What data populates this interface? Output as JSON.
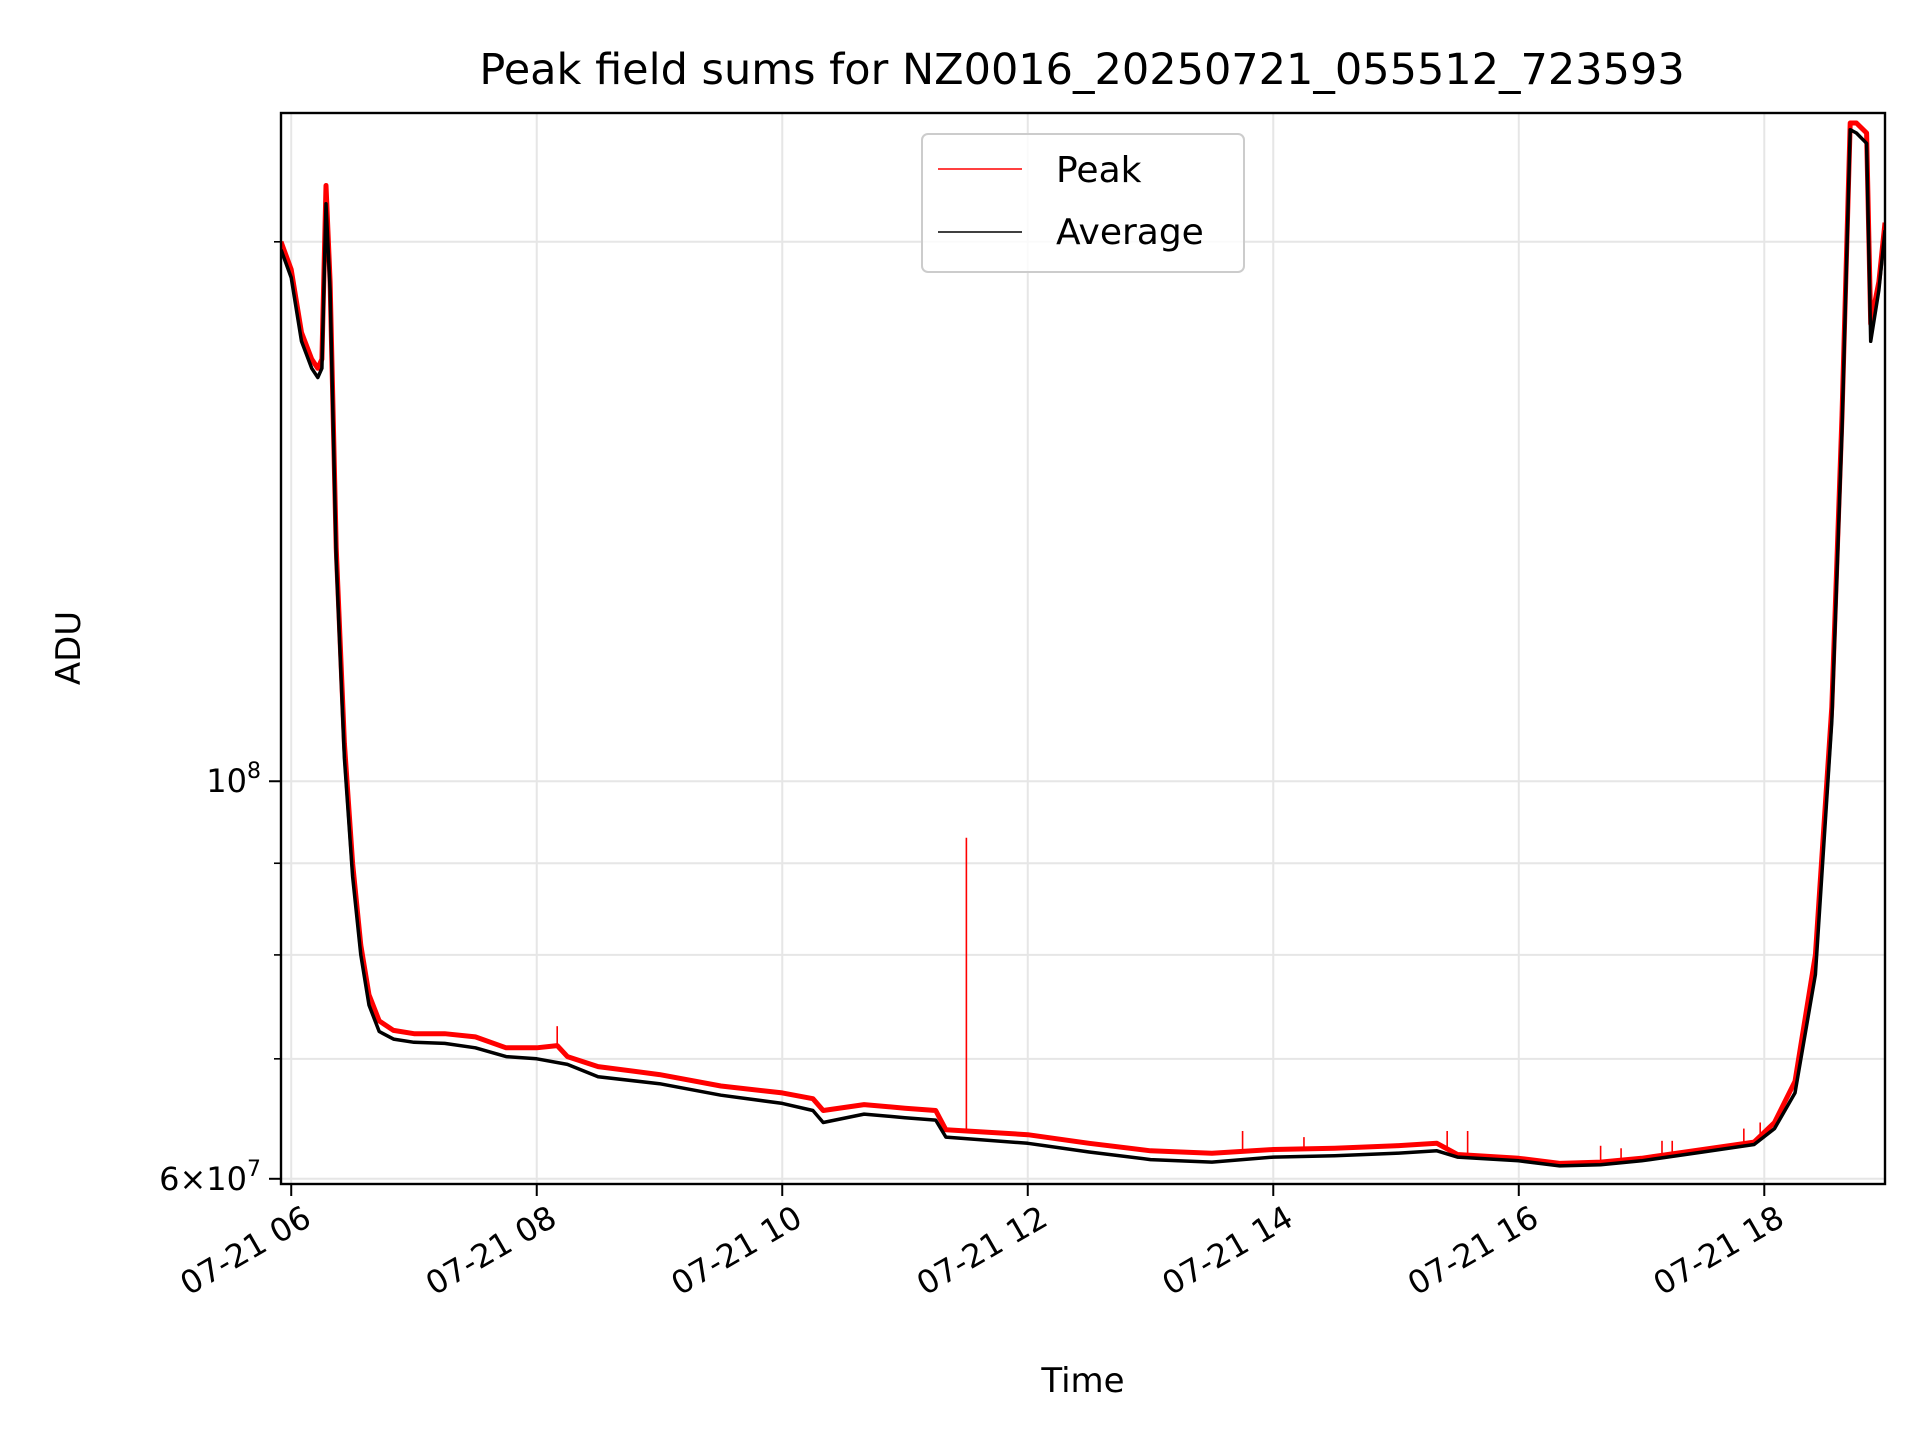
{
  "chart_data": {
    "type": "line",
    "title": "Peak field sums for NZ0016_20250721_055512_723593",
    "xlabel": "Time",
    "ylabel": "ADU",
    "yscale": "log",
    "ylim": [
      59600000,
      236000000
    ],
    "xlim": [
      "07-21 05:55",
      "07-21 18:59"
    ],
    "x_ticks": [
      "07-21 06",
      "07-21 08",
      "07-21 10",
      "07-21 12",
      "07-21 14",
      "07-21 16",
      "07-21 18"
    ],
    "y_ticks": [
      {
        "value": 100000000,
        "base": "10",
        "exp": "8"
      },
      {
        "value": 60000000,
        "mant": "6",
        "base": "10",
        "exp": "7"
      }
    ],
    "grid": true,
    "legend": "upper center",
    "colors": {
      "peak": "#ff0000",
      "average": "#000000"
    },
    "series": [
      {
        "name": "Peak",
        "color": "#ff0000",
        "points": [
          [
            "05:55",
            200000000
          ],
          [
            "06:00",
            193000000
          ],
          [
            "06:05",
            178000000
          ],
          [
            "06:10",
            172000000
          ],
          [
            "06:13",
            170000000
          ],
          [
            "06:15",
            172000000
          ],
          [
            "06:17",
            215000000
          ],
          [
            "06:19",
            190000000
          ],
          [
            "06:22",
            135000000
          ],
          [
            "06:26",
            105000000
          ],
          [
            "06:30",
            90000000
          ],
          [
            "06:34",
            81000000
          ],
          [
            "06:38",
            76000000
          ],
          [
            "06:43",
            73500000
          ],
          [
            "06:50",
            72600000
          ],
          [
            "07:00",
            72300000
          ],
          [
            "07:15",
            72300000
          ],
          [
            "07:30",
            72000000
          ],
          [
            "07:45",
            71000000
          ],
          [
            "08:00",
            71000000
          ],
          [
            "08:10",
            71200000
          ],
          [
            "08:15",
            70200000
          ],
          [
            "08:30",
            69300000
          ],
          [
            "09:00",
            68600000
          ],
          [
            "09:30",
            67600000
          ],
          [
            "10:00",
            67000000
          ],
          [
            "10:15",
            66500000
          ],
          [
            "10:20",
            65500000
          ],
          [
            "10:40",
            66000000
          ],
          [
            "11:00",
            65700000
          ],
          [
            "11:15",
            65500000
          ],
          [
            "11:20",
            63900000
          ],
          [
            "12:00",
            63500000
          ],
          [
            "12:30",
            62800000
          ],
          [
            "13:00",
            62200000
          ],
          [
            "13:30",
            62000000
          ],
          [
            "14:00",
            62300000
          ],
          [
            "14:30",
            62400000
          ],
          [
            "15:00",
            62600000
          ],
          [
            "15:20",
            62800000
          ],
          [
            "15:30",
            61900000
          ],
          [
            "16:00",
            61600000
          ],
          [
            "16:20",
            61200000
          ],
          [
            "16:40",
            61300000
          ],
          [
            "17:00",
            61600000
          ],
          [
            "17:30",
            62300000
          ],
          [
            "17:55",
            62900000
          ],
          [
            "18:05",
            64500000
          ],
          [
            "18:15",
            68000000
          ],
          [
            "18:25",
            80000000
          ],
          [
            "18:33",
            110000000
          ],
          [
            "18:38",
            160000000
          ],
          [
            "18:42",
            233000000
          ],
          [
            "18:45",
            233000000
          ],
          [
            "18:50",
            230000000
          ],
          [
            "18:52",
            180000000
          ],
          [
            "18:56",
            190000000
          ],
          [
            "18:59",
            205000000
          ]
        ],
        "spikes": [
          [
            "08:10",
            73000000
          ],
          [
            "11:30",
            93000000
          ],
          [
            "13:45",
            63800000
          ],
          [
            "14:15",
            63300000
          ],
          [
            "15:25",
            63800000
          ],
          [
            "15:35",
            63800000
          ],
          [
            "16:40",
            62600000
          ],
          [
            "16:50",
            62400000
          ],
          [
            "17:10",
            63000000
          ],
          [
            "17:15",
            63000000
          ],
          [
            "17:50",
            64000000
          ],
          [
            "17:58",
            64500000
          ]
        ]
      },
      {
        "name": "Average",
        "color": "#000000",
        "points": [
          [
            "05:55",
            198000000
          ],
          [
            "06:00",
            191000000
          ],
          [
            "06:05",
            176000000
          ],
          [
            "06:10",
            170000000
          ],
          [
            "06:13",
            168000000
          ],
          [
            "06:15",
            170000000
          ],
          [
            "06:17",
            210000000
          ],
          [
            "06:19",
            188000000
          ],
          [
            "06:22",
            133000000
          ],
          [
            "06:26",
            103000000
          ],
          [
            "06:30",
            88500000
          ],
          [
            "06:34",
            80000000
          ],
          [
            "06:38",
            75000000
          ],
          [
            "06:43",
            72500000
          ],
          [
            "06:50",
            71800000
          ],
          [
            "07:00",
            71500000
          ],
          [
            "07:15",
            71400000
          ],
          [
            "07:30",
            71000000
          ],
          [
            "07:45",
            70200000
          ],
          [
            "08:00",
            70000000
          ],
          [
            "08:15",
            69500000
          ],
          [
            "08:30",
            68400000
          ],
          [
            "09:00",
            67800000
          ],
          [
            "09:30",
            66800000
          ],
          [
            "10:00",
            66100000
          ],
          [
            "10:15",
            65500000
          ],
          [
            "10:20",
            64500000
          ],
          [
            "10:40",
            65200000
          ],
          [
            "11:00",
            64900000
          ],
          [
            "11:15",
            64700000
          ],
          [
            "11:20",
            63300000
          ],
          [
            "12:00",
            62800000
          ],
          [
            "12:30",
            62100000
          ],
          [
            "13:00",
            61500000
          ],
          [
            "13:30",
            61300000
          ],
          [
            "14:00",
            61700000
          ],
          [
            "14:30",
            61800000
          ],
          [
            "15:00",
            62000000
          ],
          [
            "15:20",
            62200000
          ],
          [
            "15:30",
            61700000
          ],
          [
            "16:00",
            61400000
          ],
          [
            "16:20",
            61000000
          ],
          [
            "16:40",
            61100000
          ],
          [
            "17:00",
            61400000
          ],
          [
            "17:30",
            62100000
          ],
          [
            "17:55",
            62700000
          ],
          [
            "18:05",
            64000000
          ],
          [
            "18:15",
            67000000
          ],
          [
            "18:25",
            78000000
          ],
          [
            "18:33",
            108000000
          ],
          [
            "18:38",
            157000000
          ],
          [
            "18:42",
            231000000
          ],
          [
            "18:45",
            230000000
          ],
          [
            "18:50",
            227000000
          ],
          [
            "18:52",
            176000000
          ],
          [
            "18:56",
            188000000
          ],
          [
            "18:59",
            203000000
          ]
        ]
      }
    ]
  }
}
